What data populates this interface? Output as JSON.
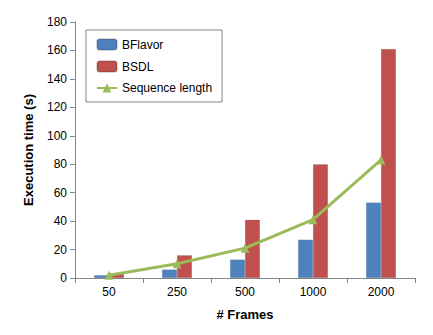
{
  "chart_data": {
    "type": "bar",
    "x_label": "# Frames",
    "y_label": "Execution time (s)",
    "categories": [
      "50",
      "250",
      "500",
      "1000",
      "2000"
    ],
    "series": [
      {
        "name": "BFlavor",
        "type": "bar",
        "color": "#4f81bd",
        "values": [
          2,
          6,
          13,
          27,
          53
        ]
      },
      {
        "name": "BSDL",
        "type": "bar",
        "color": "#c0504d",
        "values": [
          3,
          16,
          41,
          80,
          161
        ]
      },
      {
        "name": "Sequence length",
        "type": "line",
        "color": "#9bbb59",
        "marker": "triangle",
        "values": [
          2,
          10,
          21,
          41,
          83
        ]
      }
    ],
    "ylim": [
      0,
      180
    ],
    "yticks": [
      0,
      20,
      40,
      60,
      80,
      100,
      120,
      140,
      160,
      180
    ],
    "grid": false,
    "legend": "upper left"
  }
}
